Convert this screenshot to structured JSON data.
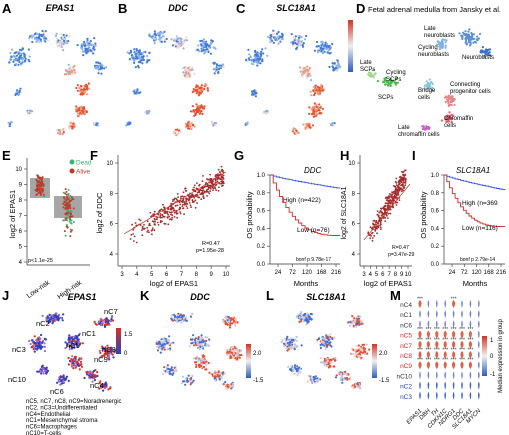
{
  "panels": {
    "A": {
      "letter": "A",
      "title": "EPAS1"
    },
    "B": {
      "letter": "B",
      "title": "DDC"
    },
    "C": {
      "letter": "C",
      "title": "SLC18A1"
    },
    "D": {
      "letter": "D",
      "title": "Fetal adrenal medulla from Jansky et al.",
      "labels": {
        "late_neuroblasts": "Late\nneuroblasts",
        "cycling_neuroblasts": "Cycling\nneuroblasts",
        "neuroblasts": "Neuroblasts",
        "late_scps": "Late\nSCPs",
        "cycling_scps": "Cycling\nSCPs",
        "scps": "SCPs",
        "bridge": "Bridge\ncells",
        "connecting": "Connecting\nprogenitor cells",
        "chromaffin": "Chromaffin\ncells",
        "late_chromaffin": "Late\nchromaffin cells"
      }
    },
    "E": {
      "letter": "E",
      "ylabel": "log2 of EPAS1",
      "legend": [
        {
          "label": "Dead",
          "color": "#3cb371"
        },
        {
          "label": "Alive",
          "color": "#c0392b"
        }
      ],
      "groups": [
        "Low-risk",
        "High-risk"
      ],
      "pvalue": "p<1.1e-25",
      "yticks": [
        "4",
        "5",
        "6",
        "7",
        "8",
        "9",
        "10"
      ]
    },
    "F": {
      "letter": "F",
      "xlabel": "log2 of EPAS1",
      "ylabel": "log2 of DDC",
      "xticks": [
        "3",
        "4",
        "5",
        "6",
        "7",
        "8",
        "9",
        "10"
      ],
      "yticks": [
        "4",
        "6",
        "8",
        "10"
      ],
      "r": "R=0.47",
      "p": "p=1.95e-28"
    },
    "G": {
      "letter": "G",
      "gene": "DDC",
      "ylabel": "OS probability",
      "xlabel": "Months",
      "xticks": [
        "24",
        "72",
        "120",
        "168",
        "216"
      ],
      "yticks": [
        "0.0",
        "0.2",
        "0.4",
        "0.6",
        "0.8",
        "1.0"
      ],
      "high": "High (n=422)",
      "low": "Low (n=76)",
      "pval": "bonf p 9.78e-17"
    },
    "H": {
      "letter": "H",
      "xlabel": "log2 of EPAS1",
      "ylabel": "log2 of SLC18A1",
      "xticks": [
        "3",
        "4",
        "5",
        "6",
        "7",
        "8",
        "9",
        "10"
      ],
      "yticks": [
        "4",
        "6",
        "8",
        "10"
      ],
      "r": "R=0.47",
      "p": "p=3.47e-29"
    },
    "I": {
      "letter": "I",
      "gene": "SLC18A1",
      "ylabel": "OS probability",
      "xlabel": "Months",
      "xticks": [
        "24",
        "72",
        "120",
        "168",
        "216"
      ],
      "yticks": [
        "0.0",
        "0.2",
        "0.4",
        "0.6",
        "0.8",
        "1.0"
      ],
      "high": "High (n=369",
      "low": "Low (n=116)",
      "pval": "bonf p 2.79e-14"
    },
    "J": {
      "letter": "J",
      "title": "EPAS1",
      "clusters": [
        "nC2",
        "nC7",
        "nC3",
        "nC1",
        "nC8",
        "nC10",
        "nC5",
        "nC9",
        "nC6",
        "nC4"
      ],
      "scale": [
        "1.5",
        "0"
      ],
      "legend": [
        "nC5, nC7, nC8, nC9=Noradrenergic",
        "nC2, nC3=Undifferentiated",
        "nC4=Endothelial",
        "nC1=Mesenchymal stroma",
        "nC6=Macrophages",
        "nC10=T-cells"
      ]
    },
    "K": {
      "letter": "K",
      "title": "DDC",
      "scale": [
        "2.0",
        "-1.5"
      ]
    },
    "L": {
      "letter": "L",
      "title": "SLC18A1",
      "scale": [
        "2.0",
        "-1.5"
      ]
    },
    "M": {
      "letter": "M",
      "rows": [
        {
          "label": "nC4",
          "color": "#333333"
        },
        {
          "label": "nC1",
          "color": "#333333"
        },
        {
          "label": "nC6",
          "color": "#333333"
        },
        {
          "label": "nC5",
          "color": "#d62728"
        },
        {
          "label": "nC7",
          "color": "#d62728"
        },
        {
          "label": "nC8",
          "color": "#d62728"
        },
        {
          "label": "nC9",
          "color": "#d62728"
        },
        {
          "label": "nC10",
          "color": "#333333"
        },
        {
          "label": "nC2",
          "color": "#1f3fbf"
        },
        {
          "label": "nC3",
          "color": "#1f3fbf"
        }
      ],
      "genes": [
        "EPAS1",
        "DBH",
        "TH",
        "CDKN1C",
        "NDRG1",
        "DDC",
        "SLC18A1",
        "MYCN"
      ],
      "colorbar_label": "Median expression in group",
      "colorbar_ticks": [
        "1",
        "0",
        "-1"
      ],
      "stars": "***"
    }
  }
}
